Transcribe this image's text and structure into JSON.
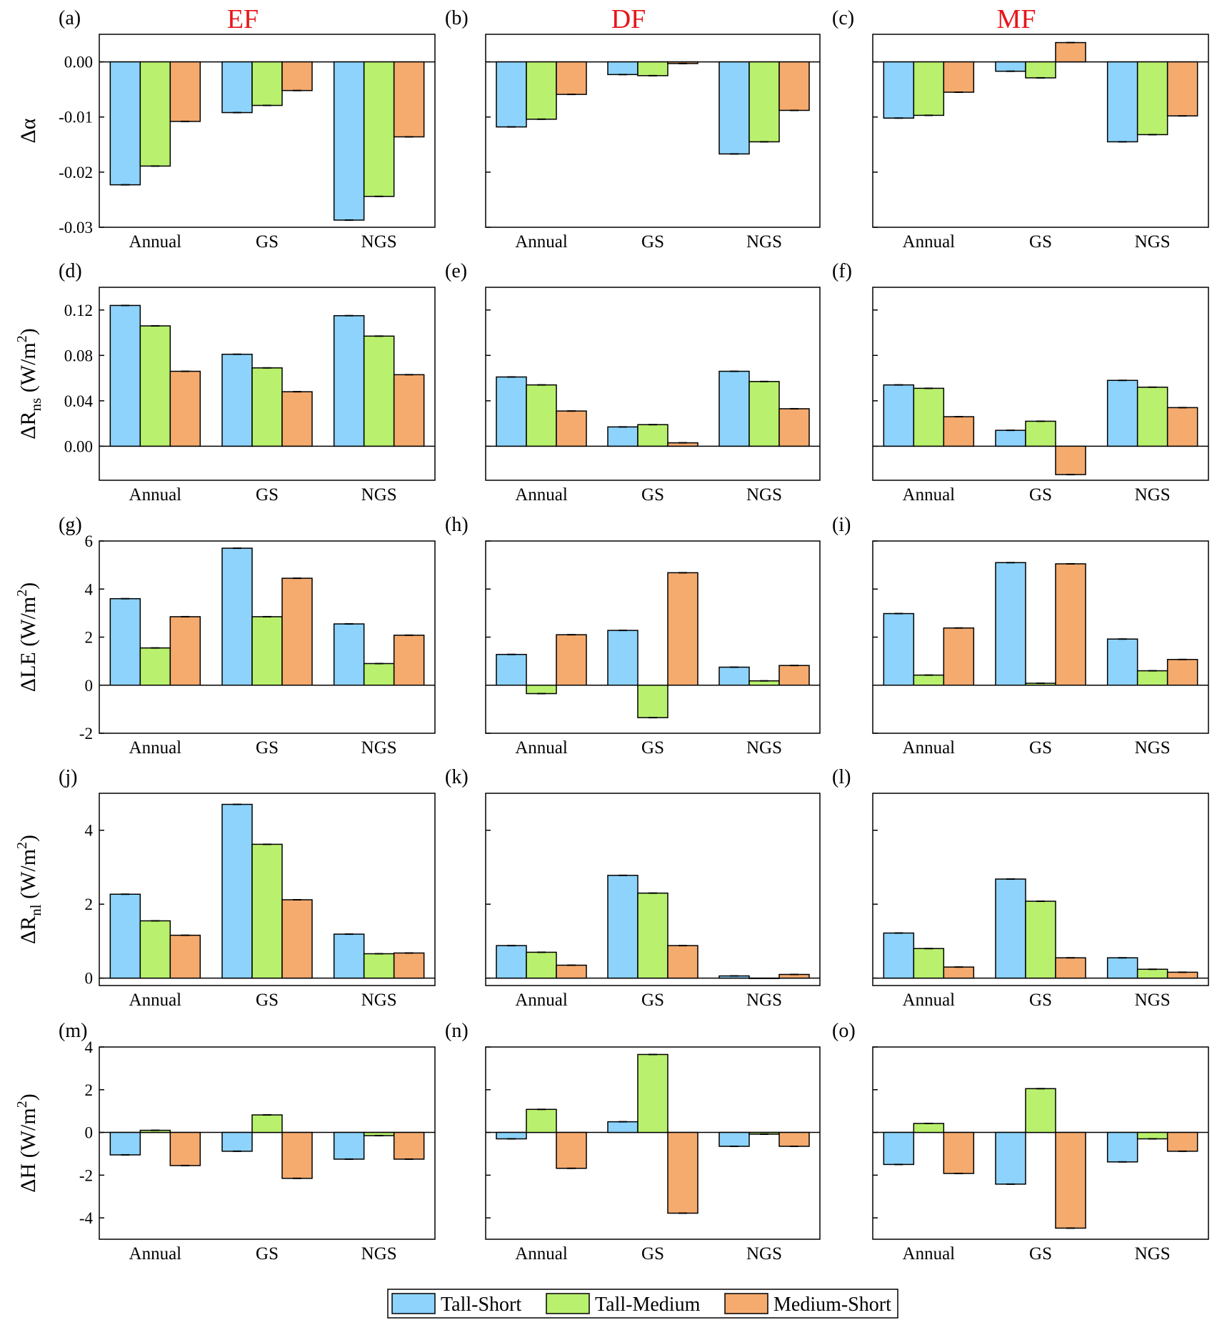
{
  "column_titles": [
    "EF",
    "DF",
    "MF"
  ],
  "legend": [
    "Tall-Short",
    "Tall-Medium",
    "Medium-Short"
  ],
  "colors": [
    "#8dd3fb",
    "#b9f06e",
    "#f5aa6e"
  ],
  "chart_data": [
    {
      "type": "bar",
      "panel": "(a)",
      "title": "EF",
      "ylabel": "Δα",
      "ylim": [
        -0.03,
        0.005
      ],
      "yticks": [
        "0.00",
        "-0.01",
        "-0.02",
        "-0.03"
      ],
      "ytick_values": [
        0,
        -0.01,
        -0.02,
        -0.03
      ],
      "categories": [
        "Annual",
        "GS",
        "NGS"
      ],
      "series": [
        {
          "name": "Tall-Short",
          "values": [
            -0.0223,
            -0.0092,
            -0.0287
          ]
        },
        {
          "name": "Tall-Medium",
          "values": [
            -0.0189,
            -0.0079,
            -0.0244
          ]
        },
        {
          "name": "Medium-Short",
          "values": [
            -0.0108,
            -0.0052,
            -0.0136
          ]
        }
      ]
    },
    {
      "type": "bar",
      "panel": "(b)",
      "title": "DF",
      "ylabel": "",
      "ylim": [
        -0.03,
        0.005
      ],
      "yticks": [],
      "ytick_values": [
        0,
        -0.01,
        -0.02,
        -0.03
      ],
      "categories": [
        "Annual",
        "GS",
        "NGS"
      ],
      "series": [
        {
          "name": "Tall-Short",
          "values": [
            -0.0118,
            -0.0023,
            -0.0167
          ]
        },
        {
          "name": "Tall-Medium",
          "values": [
            -0.0104,
            -0.0025,
            -0.0145
          ]
        },
        {
          "name": "Medium-Short",
          "values": [
            -0.0059,
            -0.0003,
            -0.0088
          ]
        }
      ]
    },
    {
      "type": "bar",
      "panel": "(c)",
      "title": "MF",
      "ylabel": "",
      "ylim": [
        -0.03,
        0.005
      ],
      "yticks": [],
      "ytick_values": [
        0,
        -0.01,
        -0.02,
        -0.03
      ],
      "categories": [
        "Annual",
        "GS",
        "NGS"
      ],
      "series": [
        {
          "name": "Tall-Short",
          "values": [
            -0.0102,
            -0.0017,
            -0.0145
          ]
        },
        {
          "name": "Tall-Medium",
          "values": [
            -0.0097,
            -0.0029,
            -0.0132
          ]
        },
        {
          "name": "Medium-Short",
          "values": [
            -0.0055,
            0.0035,
            -0.0098
          ]
        }
      ]
    },
    {
      "type": "bar",
      "panel": "(d)",
      "title": "",
      "ylabel": "ΔR",
      "ylabel_sub": "ns",
      "ylabel_unit": "(W/m",
      "ylabel_sup": "2",
      "ylim": [
        -0.03,
        0.14
      ],
      "yticks": [
        "0.12",
        "0.08",
        "0.04",
        "0.00"
      ],
      "ytick_values": [
        0.12,
        0.08,
        0.04,
        0
      ],
      "categories": [
        "Annual",
        "GS",
        "NGS"
      ],
      "series": [
        {
          "name": "Tall-Short",
          "values": [
            0.124,
            0.081,
            0.115
          ]
        },
        {
          "name": "Tall-Medium",
          "values": [
            0.106,
            0.069,
            0.097
          ]
        },
        {
          "name": "Medium-Short",
          "values": [
            0.066,
            0.048,
            0.063
          ]
        }
      ]
    },
    {
      "type": "bar",
      "panel": "(e)",
      "title": "",
      "ylabel": "",
      "ylim": [
        -0.03,
        0.14
      ],
      "yticks": [],
      "ytick_values": [
        0.12,
        0.08,
        0.04,
        0
      ],
      "categories": [
        "Annual",
        "GS",
        "NGS"
      ],
      "series": [
        {
          "name": "Tall-Short",
          "values": [
            0.061,
            0.017,
            0.066
          ]
        },
        {
          "name": "Tall-Medium",
          "values": [
            0.054,
            0.019,
            0.057
          ]
        },
        {
          "name": "Medium-Short",
          "values": [
            0.031,
            0.003,
            0.033
          ]
        }
      ]
    },
    {
      "type": "bar",
      "panel": "(f)",
      "title": "",
      "ylabel": "",
      "ylim": [
        -0.03,
        0.14
      ],
      "yticks": [],
      "ytick_values": [
        0.12,
        0.08,
        0.04,
        0
      ],
      "categories": [
        "Annual",
        "GS",
        "NGS"
      ],
      "series": [
        {
          "name": "Tall-Short",
          "values": [
            0.054,
            0.014,
            0.058
          ]
        },
        {
          "name": "Tall-Medium",
          "values": [
            0.051,
            0.022,
            0.052
          ]
        },
        {
          "name": "Medium-Short",
          "values": [
            0.026,
            -0.025,
            0.034
          ]
        }
      ]
    },
    {
      "type": "bar",
      "panel": "(g)",
      "title": "",
      "ylabel": "ΔLE",
      "ylabel_unit": "(W/m",
      "ylabel_sup": "2",
      "ylim": [
        -2,
        6
      ],
      "yticks": [
        "6",
        "4",
        "2",
        "0",
        "-2"
      ],
      "ytick_values": [
        6,
        4,
        2,
        0,
        -2
      ],
      "categories": [
        "Annual",
        "GS",
        "NGS"
      ],
      "series": [
        {
          "name": "Tall-Short",
          "values": [
            3.6,
            5.7,
            2.55
          ]
        },
        {
          "name": "Tall-Medium",
          "values": [
            1.55,
            2.85,
            0.9
          ]
        },
        {
          "name": "Medium-Short",
          "values": [
            2.85,
            4.45,
            2.08
          ]
        }
      ]
    },
    {
      "type": "bar",
      "panel": "(h)",
      "title": "",
      "ylabel": "",
      "ylim": [
        -2,
        6
      ],
      "yticks": [],
      "ytick_values": [
        6,
        4,
        2,
        0,
        -2
      ],
      "categories": [
        "Annual",
        "GS",
        "NGS"
      ],
      "series": [
        {
          "name": "Tall-Short",
          "values": [
            1.28,
            2.28,
            0.75
          ]
        },
        {
          "name": "Tall-Medium",
          "values": [
            -0.35,
            -1.35,
            0.18
          ]
        },
        {
          "name": "Medium-Short",
          "values": [
            2.1,
            4.68,
            0.82
          ]
        }
      ]
    },
    {
      "type": "bar",
      "panel": "(i)",
      "title": "",
      "ylabel": "",
      "ylim": [
        -2,
        6
      ],
      "yticks": [],
      "ytick_values": [
        6,
        4,
        2,
        0,
        -2
      ],
      "categories": [
        "Annual",
        "GS",
        "NGS"
      ],
      "series": [
        {
          "name": "Tall-Short",
          "values": [
            2.98,
            5.1,
            1.92
          ]
        },
        {
          "name": "Tall-Medium",
          "values": [
            0.42,
            0.08,
            0.6
          ]
        },
        {
          "name": "Medium-Short",
          "values": [
            2.38,
            5.05,
            1.07
          ]
        }
      ]
    },
    {
      "type": "bar",
      "panel": "(j)",
      "title": "",
      "ylabel": "ΔR",
      "ylabel_sub": "nl",
      "ylabel_unit": "(W/m",
      "ylabel_sup": "2",
      "ylim": [
        -0.2,
        5.0
      ],
      "yticks": [
        "4",
        "2",
        "0"
      ],
      "ytick_values": [
        4,
        2,
        0
      ],
      "categories": [
        "Annual",
        "GS",
        "NGS"
      ],
      "series": [
        {
          "name": "Tall-Short",
          "values": [
            2.27,
            4.7,
            1.19
          ]
        },
        {
          "name": "Tall-Medium",
          "values": [
            1.55,
            3.62,
            0.66
          ]
        },
        {
          "name": "Medium-Short",
          "values": [
            1.16,
            2.12,
            0.68
          ]
        }
      ]
    },
    {
      "type": "bar",
      "panel": "(k)",
      "title": "",
      "ylabel": "",
      "ylim": [
        -0.2,
        5.0
      ],
      "yticks": [],
      "ytick_values": [
        4,
        2,
        0
      ],
      "categories": [
        "Annual",
        "GS",
        "NGS"
      ],
      "series": [
        {
          "name": "Tall-Short",
          "values": [
            0.88,
            2.78,
            0.06
          ]
        },
        {
          "name": "Tall-Medium",
          "values": [
            0.7,
            2.3,
            0.0
          ]
        },
        {
          "name": "Medium-Short",
          "values": [
            0.35,
            0.88,
            0.1
          ]
        }
      ]
    },
    {
      "type": "bar",
      "panel": "(l)",
      "title": "",
      "ylabel": "",
      "ylim": [
        -0.2,
        5.0
      ],
      "yticks": [],
      "ytick_values": [
        4,
        2,
        0
      ],
      "categories": [
        "Annual",
        "GS",
        "NGS"
      ],
      "series": [
        {
          "name": "Tall-Short",
          "values": [
            1.22,
            2.68,
            0.55
          ]
        },
        {
          "name": "Tall-Medium",
          "values": [
            0.8,
            2.08,
            0.24
          ]
        },
        {
          "name": "Medium-Short",
          "values": [
            0.3,
            0.55,
            0.16
          ]
        }
      ]
    },
    {
      "type": "bar",
      "panel": "(m)",
      "title": "",
      "ylabel": "ΔH",
      "ylabel_unit": "(W/m",
      "ylabel_sup": "2",
      "ylim": [
        -5,
        4
      ],
      "yticks": [
        "4",
        "2",
        "0",
        "-2",
        "-4"
      ],
      "ytick_values": [
        4,
        2,
        0,
        -2,
        -4
      ],
      "categories": [
        "Annual",
        "GS",
        "NGS"
      ],
      "series": [
        {
          "name": "Tall-Short",
          "values": [
            -1.05,
            -0.88,
            -1.25
          ]
        },
        {
          "name": "Tall-Medium",
          "values": [
            0.1,
            0.82,
            -0.15
          ]
        },
        {
          "name": "Medium-Short",
          "values": [
            -1.55,
            -2.15,
            -1.25
          ]
        }
      ]
    },
    {
      "type": "bar",
      "panel": "(n)",
      "title": "",
      "ylabel": "",
      "ylim": [
        -5,
        4
      ],
      "yticks": [],
      "ytick_values": [
        4,
        2,
        0,
        -2,
        -4
      ],
      "categories": [
        "Annual",
        "GS",
        "NGS"
      ],
      "series": [
        {
          "name": "Tall-Short",
          "values": [
            -0.3,
            0.5,
            -0.65
          ]
        },
        {
          "name": "Tall-Medium",
          "values": [
            1.08,
            3.65,
            -0.08
          ]
        },
        {
          "name": "Medium-Short",
          "values": [
            -1.68,
            -3.78,
            -0.65
          ]
        }
      ]
    },
    {
      "type": "bar",
      "panel": "(o)",
      "title": "",
      "ylabel": "",
      "ylim": [
        -5,
        4
      ],
      "yticks": [],
      "ytick_values": [
        4,
        2,
        0,
        -2,
        -4
      ],
      "categories": [
        "Annual",
        "GS",
        "NGS"
      ],
      "series": [
        {
          "name": "Tall-Short",
          "values": [
            -1.5,
            -2.42,
            -1.38
          ]
        },
        {
          "name": "Tall-Medium",
          "values": [
            0.42,
            2.05,
            -0.3
          ]
        },
        {
          "name": "Medium-Short",
          "values": [
            -1.92,
            -4.48,
            -0.88
          ]
        }
      ]
    }
  ]
}
